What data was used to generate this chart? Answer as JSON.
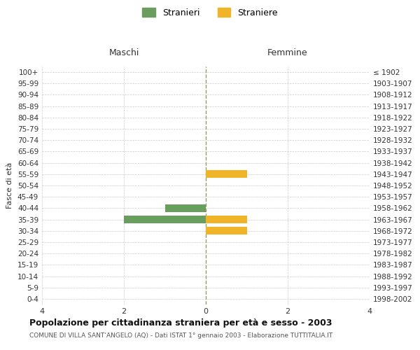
{
  "age_groups": [
    "100+",
    "95-99",
    "90-94",
    "85-89",
    "80-84",
    "75-79",
    "70-74",
    "65-69",
    "60-64",
    "55-59",
    "50-54",
    "45-49",
    "40-44",
    "35-39",
    "30-34",
    "25-29",
    "20-24",
    "15-19",
    "10-14",
    "5-9",
    "0-4"
  ],
  "birth_years": [
    "≤ 1902",
    "1903-1907",
    "1908-1912",
    "1913-1917",
    "1918-1922",
    "1923-1927",
    "1928-1932",
    "1933-1937",
    "1938-1942",
    "1943-1947",
    "1948-1952",
    "1953-1957",
    "1958-1962",
    "1963-1967",
    "1968-1972",
    "1973-1977",
    "1978-1982",
    "1983-1987",
    "1988-1992",
    "1993-1997",
    "1998-2002"
  ],
  "maschi": [
    0,
    0,
    0,
    0,
    0,
    0,
    0,
    0,
    0,
    0,
    0,
    0,
    1,
    2,
    0,
    0,
    0,
    0,
    0,
    0,
    0
  ],
  "femmine": [
    0,
    0,
    0,
    0,
    0,
    0,
    0,
    0,
    0,
    1,
    0,
    0,
    0,
    1,
    1,
    0,
    0,
    0,
    0,
    0,
    0
  ],
  "maschi_color": "#6a9e5e",
  "femmine_color": "#f0b429",
  "background_color": "#ffffff",
  "grid_color": "#cccccc",
  "title": "Popolazione per cittadinanza straniera per età e sesso - 2003",
  "subtitle": "COMUNE DI VILLA SANT’ANGELO (AQ) - Dati ISTAT 1° gennaio 2003 - Elaborazione TUTTITALIA.IT",
  "xlabel_maschi": "Maschi",
  "xlabel_femmine": "Femmine",
  "ylabel": "Fasce di età",
  "legend_maschi": "Stranieri",
  "legend_femmine": "Straniere",
  "xlim": 4,
  "bar_height": 0.7,
  "center_line_color": "#999966"
}
